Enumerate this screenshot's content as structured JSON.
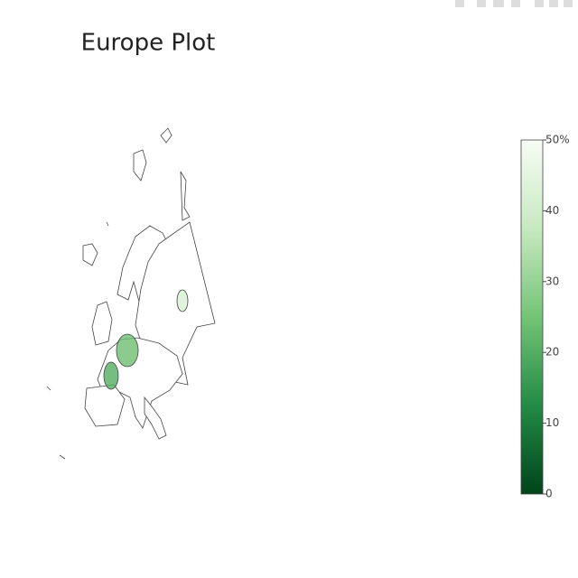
{
  "chart_data": {
    "type": "map",
    "title": "Europe Plot",
    "values": [
      42,
      24,
      20
    ],
    "colorscale": [
      "#00441b",
      "#238b45",
      "#74c476",
      "#c7e9c0",
      "#f7fcf5"
    ],
    "colorlim": [
      0,
      50
    ],
    "colorticks": [
      0,
      10,
      20,
      30,
      40,
      {
        "value": 50,
        "label": "50%"
      }
    ]
  }
}
